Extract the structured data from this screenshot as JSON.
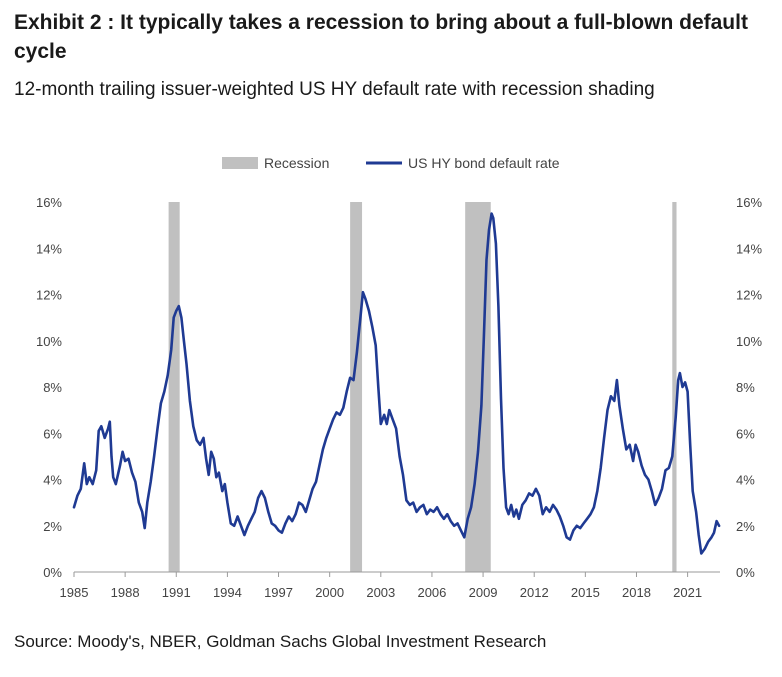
{
  "title": "Exhibit 2 : It typically takes a recession to bring about a full-blown default cycle",
  "subtitle": "12-month trailing issuer-weighted US HY default rate with recession shading",
  "source": "Source: Moody's, NBER, Goldman Sachs Global Investment Research",
  "colors": {
    "line": "#1f3a93",
    "recession": "#c0c0c0",
    "grid": "#e3e3e3"
  },
  "chart_data": {
    "type": "line",
    "legend": {
      "position": "top",
      "items": [
        {
          "label": "Recession",
          "kind": "recession"
        },
        {
          "label": "US HY bond default rate",
          "kind": "line"
        }
      ]
    },
    "y_ticks": [
      "0%",
      "2%",
      "4%",
      "6%",
      "8%",
      "10%",
      "12%",
      "14%",
      "16%"
    ],
    "y_tick_values": [
      0,
      2,
      4,
      6,
      8,
      10,
      12,
      14,
      16
    ],
    "x_ticks": [
      "1985",
      "1988",
      "1991",
      "1994",
      "1997",
      "2000",
      "2003",
      "2006",
      "2009",
      "2012",
      "2015",
      "2018",
      "2021"
    ],
    "x_tick_values": [
      1985,
      1988,
      1991,
      1994,
      1997,
      2000,
      2003,
      2006,
      2009,
      2012,
      2015,
      2018,
      2021
    ],
    "xlim": [
      1985,
      2022.9
    ],
    "ylim": [
      0,
      16
    ],
    "recessions": [
      {
        "start": 1990.55,
        "end": 1991.2
      },
      {
        "start": 2001.2,
        "end": 2001.9
      },
      {
        "start": 2007.95,
        "end": 2009.45
      },
      {
        "start": 2020.1,
        "end": 2020.35
      }
    ],
    "series": [
      {
        "name": "US HY bond default rate",
        "points": [
          [
            1985.0,
            2.8
          ],
          [
            1985.2,
            3.3
          ],
          [
            1985.4,
            3.6
          ],
          [
            1985.6,
            4.7
          ],
          [
            1985.75,
            3.8
          ],
          [
            1985.9,
            4.1
          ],
          [
            1986.1,
            3.8
          ],
          [
            1986.3,
            4.4
          ],
          [
            1986.45,
            6.1
          ],
          [
            1986.6,
            6.3
          ],
          [
            1986.8,
            5.8
          ],
          [
            1987.0,
            6.2
          ],
          [
            1987.1,
            6.5
          ],
          [
            1987.2,
            5.0
          ],
          [
            1987.3,
            4.1
          ],
          [
            1987.45,
            3.8
          ],
          [
            1987.7,
            4.6
          ],
          [
            1987.85,
            5.2
          ],
          [
            1988.0,
            4.8
          ],
          [
            1988.2,
            4.9
          ],
          [
            1988.4,
            4.3
          ],
          [
            1988.6,
            3.9
          ],
          [
            1988.8,
            3.0
          ],
          [
            1989.0,
            2.6
          ],
          [
            1989.15,
            1.9
          ],
          [
            1989.3,
            3.0
          ],
          [
            1989.5,
            3.9
          ],
          [
            1989.7,
            5.0
          ],
          [
            1989.9,
            6.2
          ],
          [
            1990.1,
            7.3
          ],
          [
            1990.3,
            7.8
          ],
          [
            1990.5,
            8.5
          ],
          [
            1990.7,
            9.6
          ],
          [
            1990.85,
            11.0
          ],
          [
            1991.0,
            11.3
          ],
          [
            1991.15,
            11.5
          ],
          [
            1991.3,
            11.0
          ],
          [
            1991.45,
            10.0
          ],
          [
            1991.6,
            9.0
          ],
          [
            1991.8,
            7.4
          ],
          [
            1992.0,
            6.3
          ],
          [
            1992.2,
            5.7
          ],
          [
            1992.4,
            5.5
          ],
          [
            1992.6,
            5.8
          ],
          [
            1992.75,
            4.9
          ],
          [
            1992.9,
            4.2
          ],
          [
            1993.05,
            5.2
          ],
          [
            1993.2,
            4.9
          ],
          [
            1993.35,
            4.1
          ],
          [
            1993.5,
            4.3
          ],
          [
            1993.7,
            3.5
          ],
          [
            1993.85,
            3.8
          ],
          [
            1994.0,
            3.0
          ],
          [
            1994.2,
            2.1
          ],
          [
            1994.4,
            2.0
          ],
          [
            1994.6,
            2.4
          ],
          [
            1994.8,
            2.0
          ],
          [
            1995.0,
            1.6
          ],
          [
            1995.2,
            2.0
          ],
          [
            1995.4,
            2.3
          ],
          [
            1995.6,
            2.6
          ],
          [
            1995.8,
            3.2
          ],
          [
            1996.0,
            3.5
          ],
          [
            1996.2,
            3.2
          ],
          [
            1996.4,
            2.6
          ],
          [
            1996.6,
            2.1
          ],
          [
            1996.8,
            2.0
          ],
          [
            1997.0,
            1.8
          ],
          [
            1997.2,
            1.7
          ],
          [
            1997.4,
            2.1
          ],
          [
            1997.6,
            2.4
          ],
          [
            1997.8,
            2.2
          ],
          [
            1998.0,
            2.5
          ],
          [
            1998.2,
            3.0
          ],
          [
            1998.4,
            2.9
          ],
          [
            1998.6,
            2.6
          ],
          [
            1998.8,
            3.1
          ],
          [
            1999.0,
            3.6
          ],
          [
            1999.2,
            3.9
          ],
          [
            1999.4,
            4.6
          ],
          [
            1999.6,
            5.3
          ],
          [
            1999.8,
            5.8
          ],
          [
            2000.0,
            6.2
          ],
          [
            2000.2,
            6.6
          ],
          [
            2000.4,
            6.9
          ],
          [
            2000.6,
            6.8
          ],
          [
            2000.8,
            7.1
          ],
          [
            2001.0,
            7.8
          ],
          [
            2001.2,
            8.4
          ],
          [
            2001.4,
            8.3
          ],
          [
            2001.6,
            9.5
          ],
          [
            2001.8,
            11.0
          ],
          [
            2001.95,
            12.1
          ],
          [
            2002.1,
            11.8
          ],
          [
            2002.3,
            11.3
          ],
          [
            2002.5,
            10.6
          ],
          [
            2002.7,
            9.8
          ],
          [
            2002.85,
            8.0
          ],
          [
            2003.0,
            6.4
          ],
          [
            2003.2,
            6.8
          ],
          [
            2003.35,
            6.4
          ],
          [
            2003.5,
            7.0
          ],
          [
            2003.7,
            6.6
          ],
          [
            2003.9,
            6.2
          ],
          [
            2004.1,
            5.0
          ],
          [
            2004.3,
            4.2
          ],
          [
            2004.5,
            3.1
          ],
          [
            2004.7,
            2.9
          ],
          [
            2004.9,
            3.0
          ],
          [
            2005.1,
            2.6
          ],
          [
            2005.3,
            2.8
          ],
          [
            2005.5,
            2.9
          ],
          [
            2005.7,
            2.5
          ],
          [
            2005.9,
            2.7
          ],
          [
            2006.1,
            2.6
          ],
          [
            2006.3,
            2.8
          ],
          [
            2006.5,
            2.5
          ],
          [
            2006.7,
            2.3
          ],
          [
            2006.9,
            2.5
          ],
          [
            2007.1,
            2.2
          ],
          [
            2007.3,
            2.0
          ],
          [
            2007.5,
            2.1
          ],
          [
            2007.7,
            1.8
          ],
          [
            2007.9,
            1.5
          ],
          [
            2008.1,
            2.3
          ],
          [
            2008.3,
            2.8
          ],
          [
            2008.5,
            3.8
          ],
          [
            2008.7,
            5.2
          ],
          [
            2008.9,
            7.2
          ],
          [
            2009.05,
            10.2
          ],
          [
            2009.2,
            13.5
          ],
          [
            2009.35,
            14.8
          ],
          [
            2009.5,
            15.5
          ],
          [
            2009.6,
            15.3
          ],
          [
            2009.75,
            14.2
          ],
          [
            2009.9,
            11.5
          ],
          [
            2010.05,
            7.5
          ],
          [
            2010.2,
            4.5
          ],
          [
            2010.35,
            2.8
          ],
          [
            2010.5,
            2.5
          ],
          [
            2010.65,
            2.9
          ],
          [
            2010.8,
            2.4
          ],
          [
            2010.95,
            2.7
          ],
          [
            2011.1,
            2.3
          ],
          [
            2011.3,
            2.9
          ],
          [
            2011.5,
            3.1
          ],
          [
            2011.7,
            3.4
          ],
          [
            2011.9,
            3.3
          ],
          [
            2012.1,
            3.6
          ],
          [
            2012.3,
            3.3
          ],
          [
            2012.5,
            2.5
          ],
          [
            2012.7,
            2.8
          ],
          [
            2012.9,
            2.6
          ],
          [
            2013.1,
            2.9
          ],
          [
            2013.3,
            2.7
          ],
          [
            2013.5,
            2.4
          ],
          [
            2013.7,
            2.0
          ],
          [
            2013.9,
            1.5
          ],
          [
            2014.1,
            1.4
          ],
          [
            2014.3,
            1.8
          ],
          [
            2014.5,
            2.0
          ],
          [
            2014.7,
            1.9
          ],
          [
            2014.9,
            2.1
          ],
          [
            2015.1,
            2.3
          ],
          [
            2015.3,
            2.5
          ],
          [
            2015.5,
            2.8
          ],
          [
            2015.7,
            3.5
          ],
          [
            2015.9,
            4.5
          ],
          [
            2016.1,
            5.8
          ],
          [
            2016.3,
            7.0
          ],
          [
            2016.5,
            7.6
          ],
          [
            2016.7,
            7.4
          ],
          [
            2016.85,
            8.3
          ],
          [
            2017.0,
            7.2
          ],
          [
            2017.2,
            6.2
          ],
          [
            2017.4,
            5.3
          ],
          [
            2017.6,
            5.5
          ],
          [
            2017.8,
            4.8
          ],
          [
            2017.95,
            5.5
          ],
          [
            2018.1,
            5.2
          ],
          [
            2018.3,
            4.6
          ],
          [
            2018.5,
            4.2
          ],
          [
            2018.7,
            4.0
          ],
          [
            2018.9,
            3.5
          ],
          [
            2019.1,
            2.9
          ],
          [
            2019.3,
            3.2
          ],
          [
            2019.5,
            3.6
          ],
          [
            2019.7,
            4.4
          ],
          [
            2019.9,
            4.5
          ],
          [
            2020.1,
            5.0
          ],
          [
            2020.3,
            6.7
          ],
          [
            2020.45,
            8.3
          ],
          [
            2020.55,
            8.6
          ],
          [
            2020.7,
            8.0
          ],
          [
            2020.85,
            8.2
          ],
          [
            2021.0,
            7.8
          ],
          [
            2021.15,
            5.5
          ],
          [
            2021.3,
            3.5
          ],
          [
            2021.5,
            2.6
          ],
          [
            2021.65,
            1.6
          ],
          [
            2021.8,
            0.8
          ],
          [
            2022.0,
            1.0
          ],
          [
            2022.2,
            1.3
          ],
          [
            2022.4,
            1.5
          ],
          [
            2022.55,
            1.7
          ],
          [
            2022.7,
            2.2
          ],
          [
            2022.85,
            2.0
          ]
        ]
      }
    ]
  }
}
